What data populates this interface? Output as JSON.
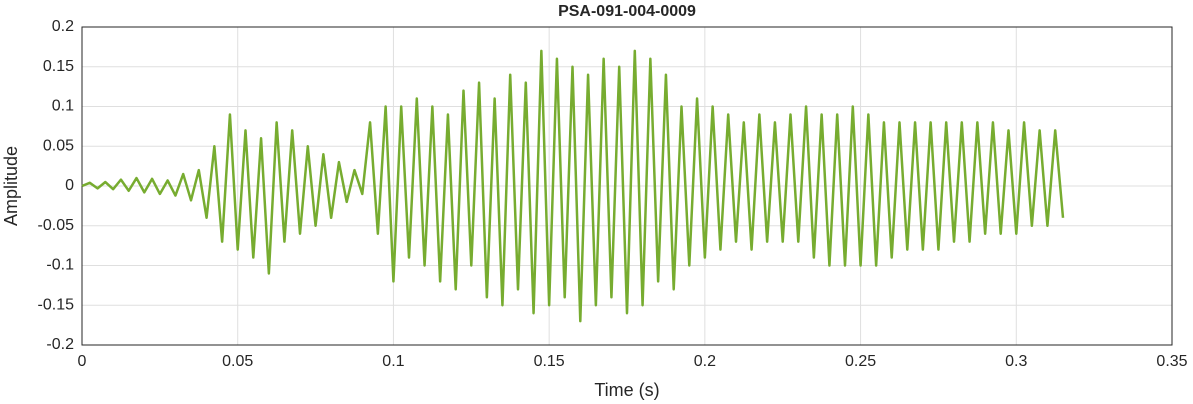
{
  "chart_data": {
    "type": "line",
    "title": "PSA-091-004-0009",
    "x_label": "Time (s)",
    "y_label": "Amplitude",
    "color": "#77ac30",
    "grid": true,
    "xlim": [
      0,
      0.35
    ],
    "xticks": [
      0,
      0.05,
      0.1,
      0.15,
      0.2,
      0.25,
      0.3,
      0.35
    ],
    "ylim": [
      -0.2,
      0.2
    ],
    "yticks": [
      0.2,
      0.15,
      0.1,
      0.05,
      0,
      -0.05,
      -0.1,
      -0.15,
      -0.2
    ],
    "x": [
      0,
      0.0025,
      0.005,
      0.0075,
      0.01,
      0.0125,
      0.015,
      0.0175,
      0.02,
      0.0225,
      0.025,
      0.0275,
      0.03,
      0.0325,
      0.035,
      0.0375,
      0.04,
      0.0425,
      0.045,
      0.0475,
      0.05,
      0.0525,
      0.055,
      0.0575,
      0.06,
      0.0625,
      0.065,
      0.0675,
      0.07,
      0.0725,
      0.075,
      0.0775,
      0.08,
      0.0825,
      0.085,
      0.0875,
      0.09,
      0.0925,
      0.095,
      0.0975,
      0.1,
      0.1025,
      0.105,
      0.1075,
      0.11,
      0.1125,
      0.115,
      0.1175,
      0.12,
      0.1225,
      0.125,
      0.1275,
      0.13,
      0.1325,
      0.135,
      0.1375,
      0.14,
      0.1425,
      0.145,
      0.1475,
      0.15,
      0.1525,
      0.155,
      0.1575,
      0.16,
      0.1625,
      0.165,
      0.1675,
      0.17,
      0.1725,
      0.175,
      0.1775,
      0.18,
      0.1825,
      0.185,
      0.1875,
      0.19,
      0.1925,
      0.195,
      0.1975,
      0.2,
      0.2025,
      0.205,
      0.2075,
      0.21,
      0.2125,
      0.215,
      0.2175,
      0.22,
      0.2225,
      0.225,
      0.2275,
      0.23,
      0.2325,
      0.235,
      0.2375,
      0.24,
      0.2425,
      0.245,
      0.2475,
      0.25,
      0.2525,
      0.255,
      0.2575,
      0.26,
      0.2625,
      0.265,
      0.2675,
      0.27,
      0.2725,
      0.275,
      0.2775,
      0.28,
      0.2825,
      0.285,
      0.2875,
      0.29,
      0.2925,
      0.295,
      0.2975,
      0.3,
      0.3025,
      0.305,
      0.3075,
      0.31,
      0.3125,
      0.315
    ],
    "values": [
      0,
      0.004,
      -0.003,
      0.005,
      -0.004,
      0.008,
      -0.006,
      0.01,
      -0.008,
      0.009,
      -0.01,
      0.007,
      -0.012,
      0.015,
      -0.018,
      0.02,
      -0.04,
      0.05,
      -0.07,
      0.09,
      -0.08,
      0.07,
      -0.09,
      0.06,
      -0.11,
      0.08,
      -0.07,
      0.07,
      -0.06,
      0.05,
      -0.05,
      0.04,
      -0.04,
      0.03,
      -0.02,
      0.02,
      -0.01,
      0.08,
      -0.06,
      0.1,
      -0.12,
      0.1,
      -0.09,
      0.11,
      -0.1,
      0.1,
      -0.12,
      0.09,
      -0.13,
      0.12,
      -0.1,
      0.13,
      -0.14,
      0.11,
      -0.15,
      0.14,
      -0.13,
      0.13,
      -0.16,
      0.17,
      -0.15,
      0.16,
      -0.14,
      0.15,
      -0.17,
      0.14,
      -0.15,
      0.16,
      -0.14,
      0.15,
      -0.16,
      0.17,
      -0.15,
      0.16,
      -0.12,
      0.14,
      -0.13,
      0.1,
      -0.1,
      0.11,
      -0.09,
      0.1,
      -0.08,
      0.09,
      -0.07,
      0.08,
      -0.08,
      0.09,
      -0.07,
      0.08,
      -0.07,
      0.09,
      -0.07,
      0.1,
      -0.09,
      0.09,
      -0.1,
      0.09,
      -0.1,
      0.1,
      -0.1,
      0.09,
      -0.1,
      0.08,
      -0.09,
      0.08,
      -0.08,
      0.08,
      -0.08,
      0.08,
      -0.08,
      0.08,
      -0.07,
      0.08,
      -0.07,
      0.08,
      -0.06,
      0.08,
      -0.06,
      0.07,
      -0.06,
      0.08,
      -0.05,
      0.07,
      -0.05,
      0.07,
      -0.04
    ]
  }
}
